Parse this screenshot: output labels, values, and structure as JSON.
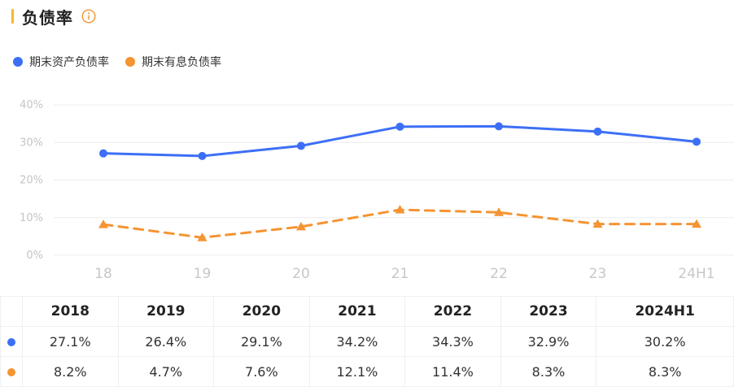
{
  "header": {
    "title": "负债率",
    "info_icon": "info-icon"
  },
  "colors": {
    "accent": "#f7b731",
    "series1": "#3d6ff6",
    "series2": "#f59432",
    "grid": "#ececec"
  },
  "legend": {
    "items": [
      {
        "label": "期末资产负债率"
      },
      {
        "label": "期末有息负债率"
      }
    ]
  },
  "chart_data": {
    "type": "line",
    "categories": [
      "18",
      "19",
      "20",
      "21",
      "22",
      "23",
      "24H1"
    ],
    "y_ticks": [
      "40%",
      "30%",
      "20%",
      "10%",
      "0%"
    ],
    "ylim": [
      0,
      40
    ],
    "grid": true,
    "legend_position": "top-left",
    "series": [
      {
        "name": "期末资产负债率",
        "values": [
          27.1,
          26.4,
          29.1,
          34.2,
          34.3,
          32.9,
          30.2
        ],
        "style": "solid",
        "marker": "circle"
      },
      {
        "name": "期末有息负债率",
        "values": [
          8.2,
          4.7,
          7.6,
          12.1,
          11.4,
          8.3,
          8.3
        ],
        "style": "dashed",
        "marker": "triangle"
      }
    ]
  },
  "table": {
    "headers": [
      "2018",
      "2019",
      "2020",
      "2021",
      "2022",
      "2023",
      "2024H1"
    ],
    "rows": [
      [
        "27.1%",
        "26.4%",
        "29.1%",
        "34.2%",
        "34.3%",
        "32.9%",
        "30.2%"
      ],
      [
        "8.2%",
        "4.7%",
        "7.6%",
        "12.1%",
        "11.4%",
        "8.3%",
        "8.3%"
      ]
    ]
  }
}
